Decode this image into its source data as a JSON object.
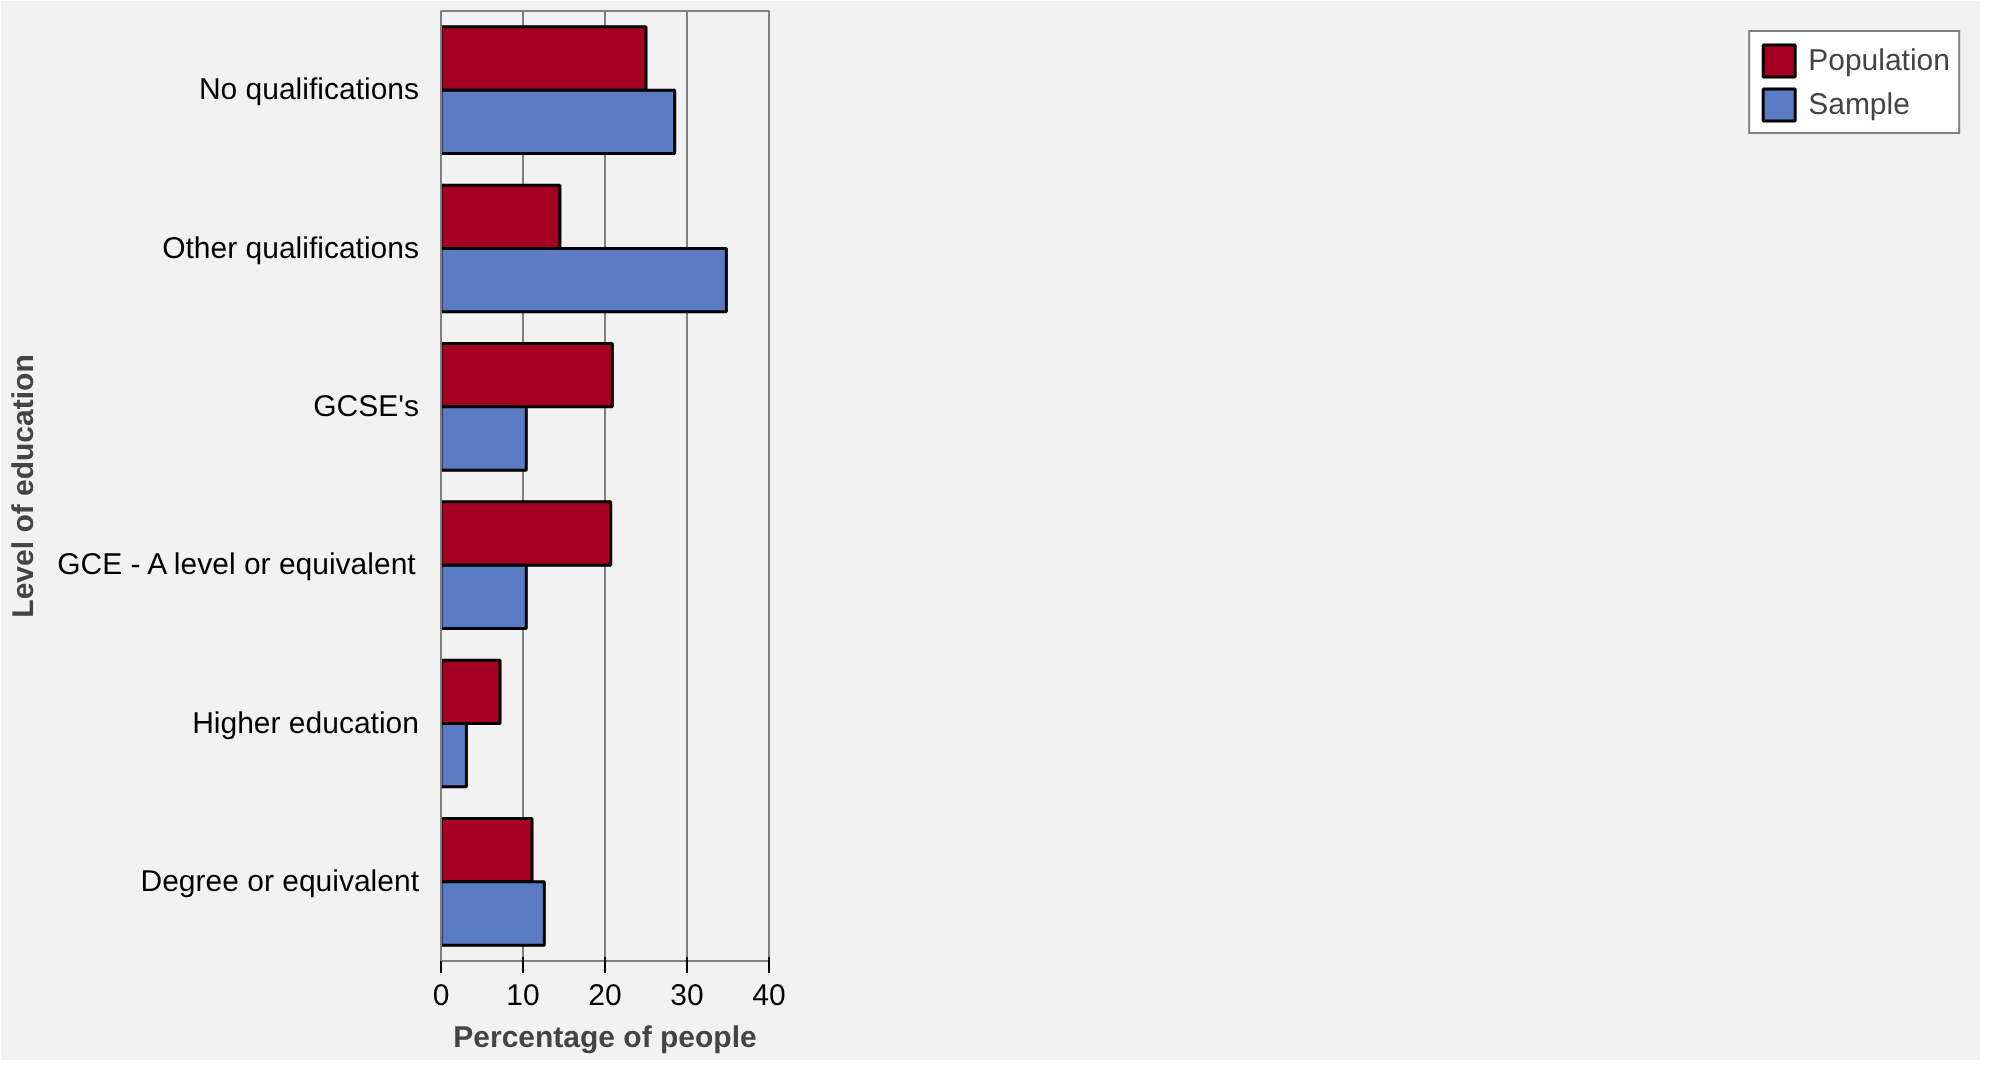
{
  "chart_data": {
    "type": "bar",
    "orientation": "horizontal",
    "xlabel": "Percentage of people",
    "ylabel": "Level of education",
    "categories": [
      "No qualifications",
      "Other qualifications",
      "GCSE's",
      "GCE - A level or equivalent",
      "Higher education",
      "Degree or equivalent"
    ],
    "series": [
      {
        "name": "Population",
        "color": "#a50021",
        "values": [
          25.0,
          14.5,
          20.9,
          20.7,
          7.2,
          11.1
        ]
      },
      {
        "name": "Sample",
        "color": "#5b7cc4",
        "values": [
          28.5,
          34.8,
          10.4,
          10.4,
          3.1,
          12.6
        ]
      }
    ],
    "xlim": [
      0,
      40
    ],
    "xticks": [
      0,
      10,
      20,
      30,
      40
    ],
    "grid": "x",
    "legend": "right"
  }
}
